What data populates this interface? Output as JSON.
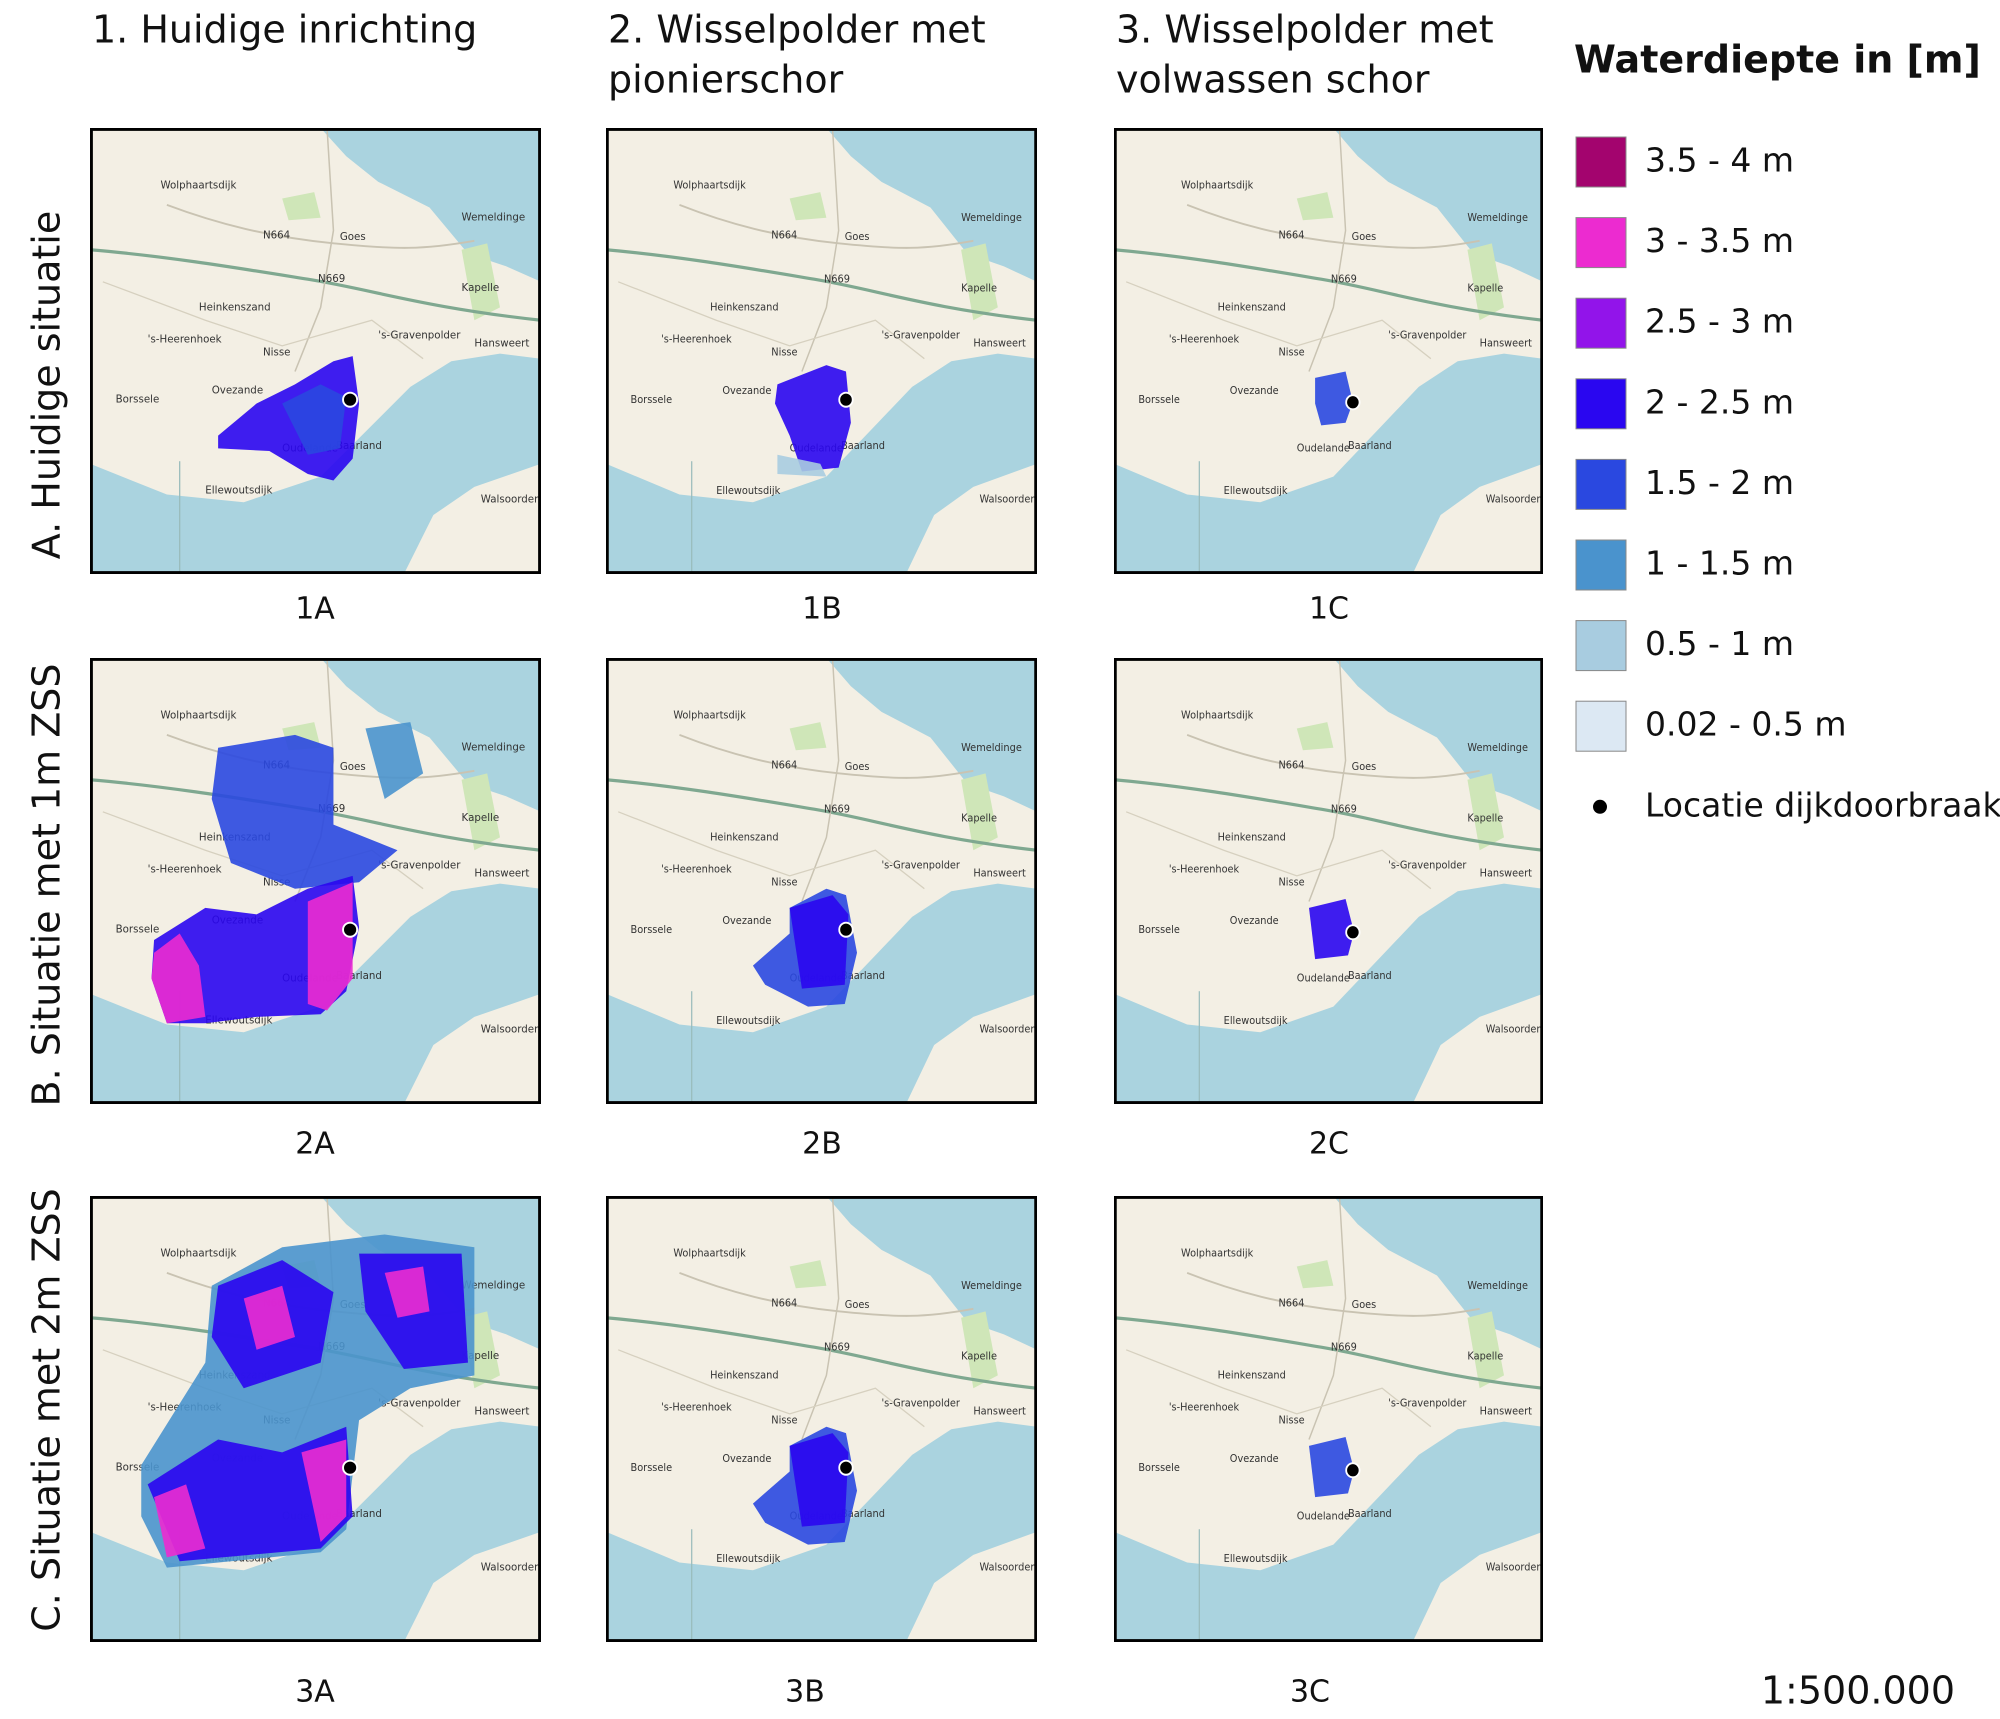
{
  "headers": [
    [
      "1. Huidige inrichting"
    ],
    [
      "2. Wisselpolder met",
      "pionierschor"
    ],
    [
      "3. Wisselpolder met",
      "volwassen schor"
    ]
  ],
  "row_labels": [
    "A. Huidige situatie",
    "B. Situatie met 1m ZSS",
    "C. Situatie met 2m ZSS"
  ],
  "panels": [
    [
      "1A",
      "1B",
      "1C"
    ],
    [
      "2A",
      "2B",
      "2C"
    ],
    [
      "3A",
      "3B",
      "3C"
    ]
  ],
  "legend": {
    "title": "Waterdiepte in [m]",
    "items": [
      {
        "label": "3.5 - 4 m",
        "color": "#a3046e"
      },
      {
        "label": "3 - 3.5 m",
        "color": "#ec2bd0"
      },
      {
        "label": "2.5 - 3 m",
        "color": "#9214ea"
      },
      {
        "label": "2 - 2.5 m",
        "color": "#2a06f0"
      },
      {
        "label": "1.5 - 2 m",
        "color": "#2a48e0"
      },
      {
        "label": "1 - 1.5 m",
        "color": "#4a93cd"
      },
      {
        "label": "0.5 - 1 m",
        "color": "#a8cce0"
      },
      {
        "label": "0.02 - 0.5 m",
        "color": "#dce8f3"
      }
    ],
    "break_label": "Locatie dijkdoorbraak"
  },
  "scale": "1:500.000",
  "places": [
    "Wolphaartsdijk",
    "Goes",
    "Wemeldinge",
    "Kapelle",
    "Heinkenszand",
    "'s-Heerenhoek",
    "Nisse",
    "'s-Gravenpolder",
    "Hansweert",
    "Ovezande",
    "Borssele",
    "Oudelande",
    "Baarland",
    "Ellewoutsdijk",
    "Walsoorden",
    "N664",
    "N669"
  ]
}
